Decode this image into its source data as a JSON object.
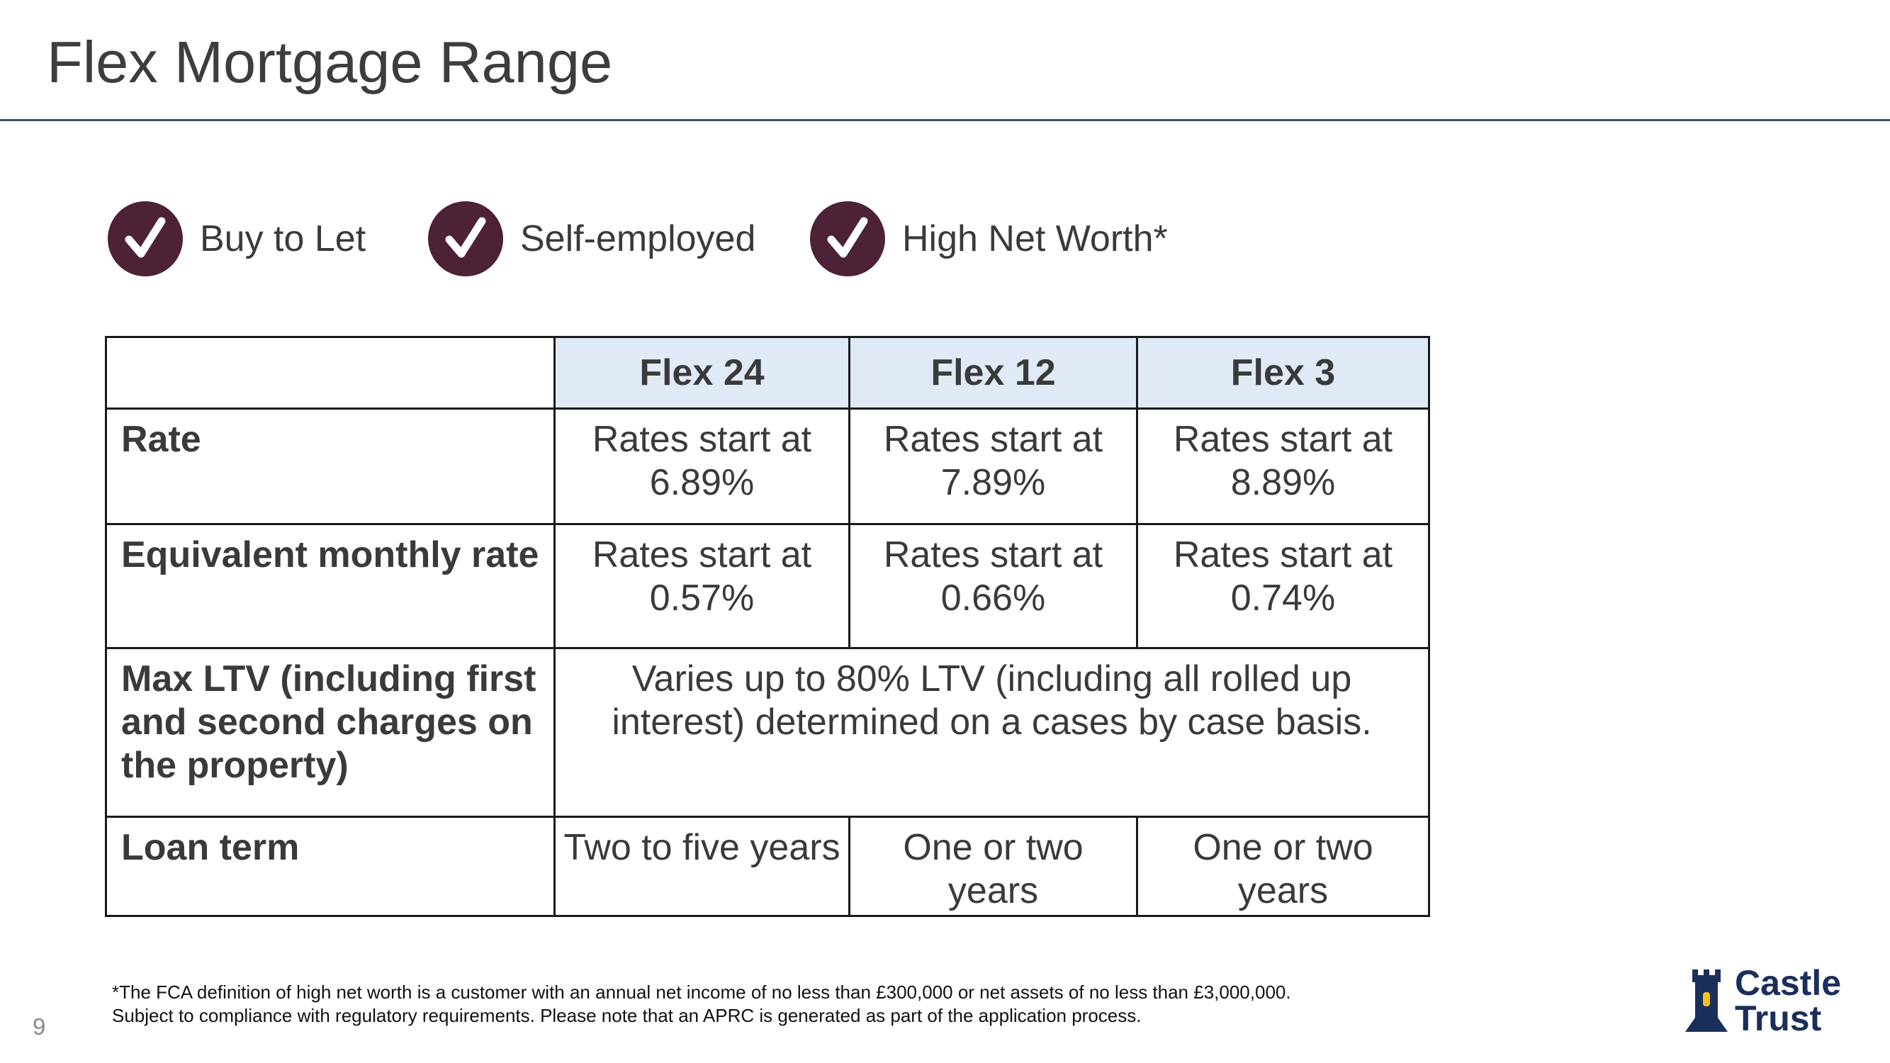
{
  "title": "Flex Mortgage Range",
  "features": [
    {
      "label": "Buy to Let",
      "icon": "checkmark-icon"
    },
    {
      "label": "Self-employed",
      "icon": "checkmark-icon"
    },
    {
      "label": "High Net Worth*",
      "icon": "checkmark-icon"
    }
  ],
  "table": {
    "columns": [
      "",
      "Flex 24",
      "Flex 12",
      "Flex 3"
    ],
    "rows": [
      {
        "label": "Rate",
        "cells": [
          "Rates start at 6.89%",
          "Rates start at 7.89%",
          "Rates start at 8.89%"
        ]
      },
      {
        "label": "Equivalent monthly rate",
        "cells": [
          "Rates start at 0.57%",
          "Rates start at 0.66%",
          "Rates start at 0.74%"
        ]
      },
      {
        "label": "Max LTV (including first and second charges on the property)",
        "merged": "Varies up to 80% LTV (including all rolled up interest) determined on a cases by case basis."
      },
      {
        "label": "Loan term",
        "cells": [
          "Two to five years",
          "One or two years",
          "One or two years"
        ]
      }
    ]
  },
  "footnote": {
    "line1": "*The FCA definition of high net worth is a customer with an annual net income of no less than £300,000 or net assets of no less than £3,000,000.",
    "line2": "Subject to compliance with regulatory requirements. Please note that an APRC is generated as part of the application process."
  },
  "page_number": "9",
  "logo": {
    "line1": "Castle",
    "line2": "Trust",
    "icon": "castle-tower-icon"
  },
  "colors": {
    "accent": "#4d2136",
    "header_fill": "#dfeaf6",
    "rule": "#3c5a62",
    "logo": "#1b2f5c"
  }
}
